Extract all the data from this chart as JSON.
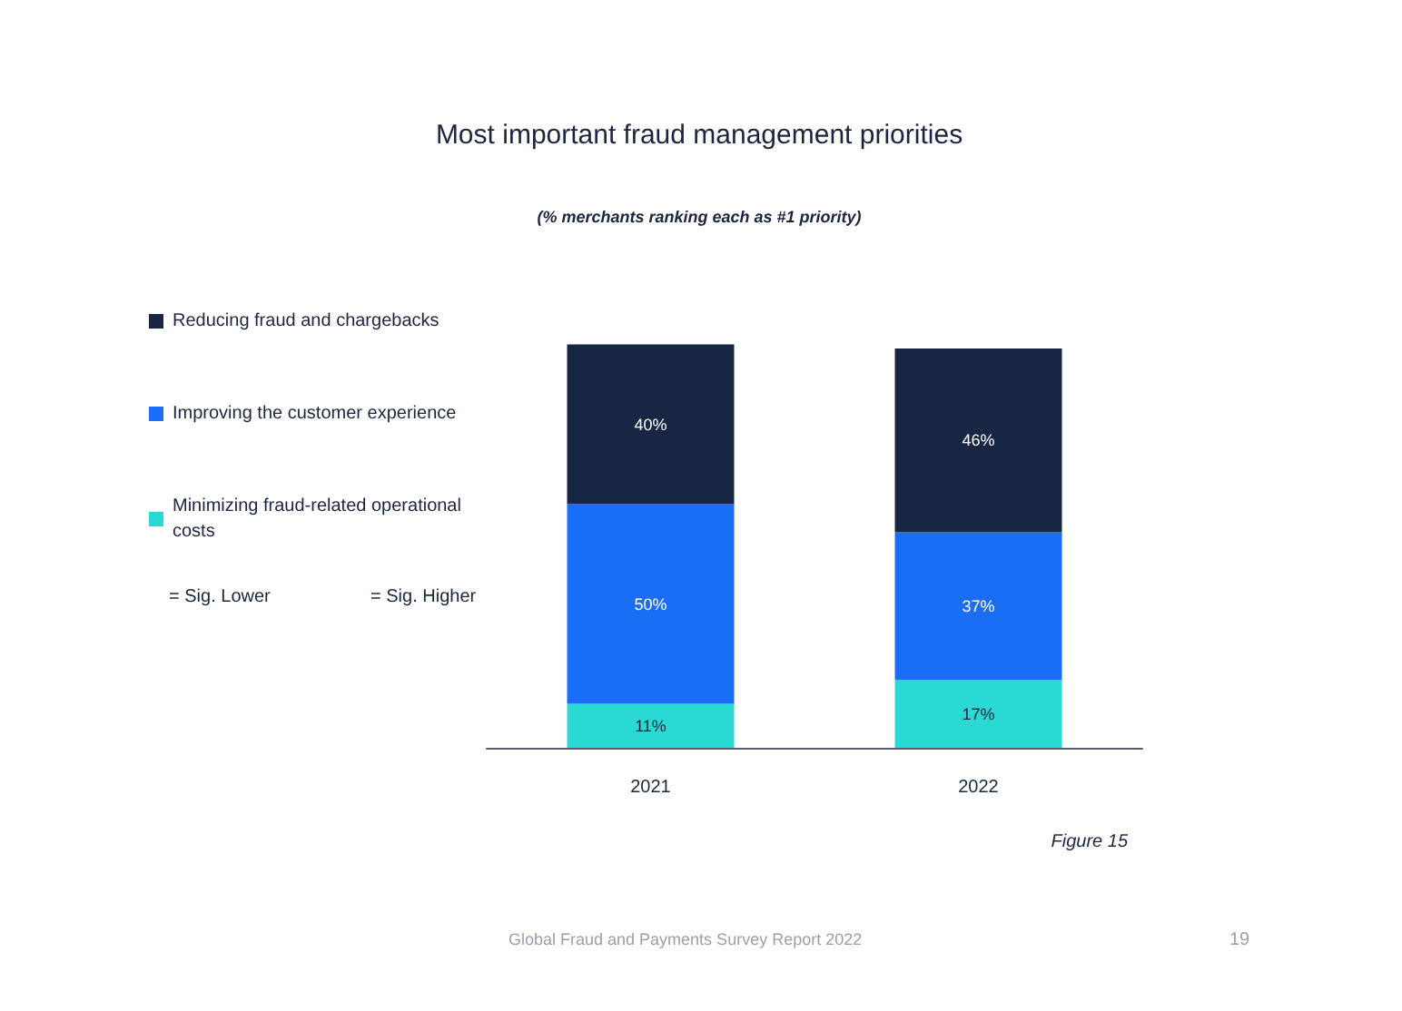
{
  "chart_data": {
    "type": "bar",
    "title": "Most important fraud management priorities",
    "subtitle": "(% merchants ranking each as #1 priority)",
    "categories": [
      "2021",
      "2022"
    ],
    "stacked": true,
    "tick_labels": "x",
    "legend": "left",
    "series": [
      {
        "name": "Minimizing fraud-related operational costs",
        "color": "#2ad8d4",
        "values": [
          11,
          17
        ],
        "value_labels": [
          "11%",
          "17%"
        ]
      },
      {
        "name": "Improving the customer experience",
        "color": "#1a6ef5",
        "values": [
          50,
          37
        ],
        "value_labels": [
          "50%",
          "37%"
        ]
      },
      {
        "name": "Reducing fraud and chargebacks",
        "color": "#172643",
        "values": [
          40,
          46
        ],
        "value_labels": [
          "40%",
          "46%"
        ]
      }
    ],
    "annotations": [
      "= Sig. Lower",
      "= Sig. Higher",
      "Figure 15",
      "Global Fraud and Payments Survey Report 2022",
      "19"
    ]
  }
}
